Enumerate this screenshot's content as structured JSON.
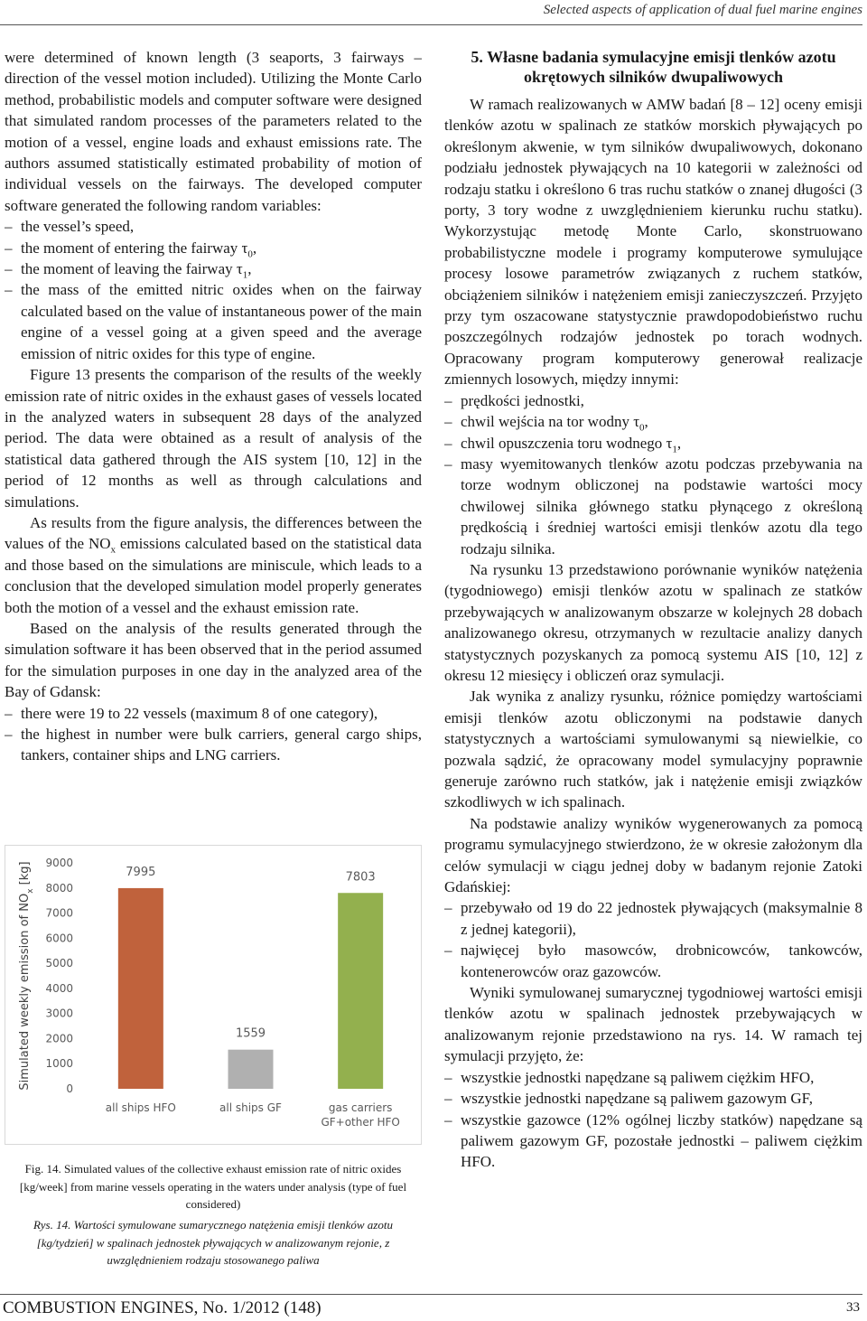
{
  "header": "Selected aspects of application of dual fuel marine engines",
  "left_column": [
    {
      "continuation": "were determined of known length (3 seaports, 3 fairways – direction of the vessel motion included). Utilizing the Monte Carlo method, probabilistic models and computer software were designed that simulated random processes of the parameters related to the motion of a vessel, engine loads and exhaust emissions rate. The authors assumed statistically estimated probability of motion of individual vessels on the fairways. The developed computer software generated the following random variables:"
    },
    {
      "list": [
        "the vessel’s speed,",
        {
          "text": "the moment of entering the fairway τ",
          "sub": "0",
          "tail": ","
        },
        {
          "text": "the moment of leaving the fairway τ",
          "sub": "1",
          "tail": ","
        },
        "the mass of the emitted nitric oxides when on the fairway calculated based on the value of instantaneous power of the main engine of a vessel going at a given speed and the average emission of nitric oxides for this type of engine."
      ]
    },
    {
      "paragraph": "Figure 13 presents the comparison of the results of the weekly emission rate of nitric oxides in the exhaust gases of vessels located in the analyzed waters in subsequent 28 days of the analyzed period. The data were obtained as a result of analysis of the statistical data gathered through the AIS system [10, 12] in the period of 12 months as well as through calculations and simulations."
    },
    {
      "paragraph": {
        "text": "As results from the figure analysis, the differences between the values of the NO",
        "sub": "x",
        "tail": " emissions calculated based on the statistical data and those based on the simulations are miniscule, which leads to a conclusion that the developed simulation model properly generates both the motion of a vessel and the exhaust emission rate."
      }
    },
    {
      "paragraph": "Based on the analysis of the results generated through the simulation software it has been observed that in the period assumed for the simulation purposes in one day in the analyzed area of the Bay of Gdansk:"
    },
    {
      "list": [
        "there were 19 to 22 vessels (maximum 8 of one category),",
        "the highest in number were bulk carriers, general cargo ships, tankers, container ships and LNG carriers."
      ]
    }
  ],
  "chart_data": {
    "type": "bar",
    "y_label": {
      "text": "Simulated weekly emission of NO",
      "sub": "x",
      "tail": " [kg]"
    },
    "categories": [
      "all ships HFO",
      "all ships GF",
      "gas carriers GF+other HFO"
    ],
    "values": [
      7995,
      1559,
      7803
    ],
    "colors": [
      "#c0623c",
      "#b0b0b0",
      "#93b04e"
    ],
    "ylim": [
      0,
      9000
    ],
    "yticks": [
      0,
      1000,
      2000,
      3000,
      4000,
      5000,
      6000,
      7000,
      8000,
      9000
    ],
    "grid": false
  },
  "caption_en": "Fig. 14. Simulated values of the collective exhaust emission rate of nitric oxides [kg/week] from marine vessels operating in the waters under analysis (type of fuel considered)",
  "caption_pl": "Rys. 14. Wartości symulowane sumarycznego natężenia emisji tlenków azotu [kg/tydzień] w spalinach jednostek pływających w analizowanym rejonie, z uwzględnieniem rodzaju stosowanego paliwa",
  "right_column": [
    {
      "heading": "5. Własne badania symulacyjne emisji tlenków azotu okrętowych silników dwupaliwowych"
    },
    {
      "paragraph": "W ramach realizowanych w AMW badań [8 – 12] oceny emisji tlenków azotu w spalinach ze statków morskich pływających po określonym akwenie, w tym silników dwupaliwowych, dokonano podziału jednostek pływających na 10 kategorii w zależności od rodzaju statku i określono 6 tras ruchu statków o znanej długości (3 porty, 3 tory wodne z uwzględnieniem kierunku ruchu statku). Wykorzystując metodę Monte Carlo, skonstruowano probabilistyczne modele i programy komputerowe symulujące procesy losowe parametrów związanych z ruchem statków, obciążeniem silników i natężeniem emisji zanieczyszczeń. Przyjęto przy tym oszacowane statystycznie prawdopodobieństwo ruchu poszczególnych rodzajów jednostek po torach wodnych. Opracowany program komputerowy generował realizacje zmiennych losowych, między innymi:"
    },
    {
      "list": [
        "prędkości jednostki,",
        {
          "text": "chwil wejścia na tor wodny τ",
          "sub": "0",
          "tail": ","
        },
        {
          "text": "chwil opuszczenia toru wodnego τ",
          "sub": "1",
          "tail": ","
        },
        "masy wyemitowanych tlenków azotu podczas przebywania na torze wodnym obliczonej na podstawie wartości mocy chwilowej silnika głównego statku płynącego z określoną prędkością i średniej wartości emisji tlenków azotu dla tego rodzaju silnika."
      ]
    },
    {
      "paragraph": "Na rysunku 13 przedstawiono porównanie wyników natężenia (tygodniowego) emisji tlenków azotu w spalinach ze statków przebywających w analizowanym obszarze w kolejnych 28 dobach analizowanego okresu, otrzymanych w rezultacie analizy danych statystycznych pozyskanych za pomocą systemu AIS [10, 12] z okresu 12 miesięcy i obliczeń oraz symulacji."
    },
    {
      "paragraph": "Jak wynika z analizy rysunku, różnice pomiędzy wartościami emisji tlenków azotu obliczonymi na podstawie danych statystycznych a wartościami symulowanymi są niewielkie, co pozwala sądzić, że opracowany model symulacyjny poprawnie generuje zarówno ruch statków, jak i natężenie emisji związków szkodliwych w ich spalinach."
    },
    {
      "paragraph": "Na podstawie analizy wyników wygenerowanych za pomocą programu symulacyjnego stwierdzono, że w okresie założonym dla celów symulacji w ciągu jednej doby w badanym rejonie Zatoki Gdańskiej:"
    },
    {
      "list": [
        "przebywało od 19 do 22 jednostek pływających (maksymalnie 8 z jednej kategorii),",
        "najwięcej było masowców, drobnicowców, tankowców, kontenerowców oraz gazowców."
      ]
    },
    {
      "paragraph": "Wyniki symulowanej sumarycznej tygodniowej wartości emisji tlenków azotu w spalinach jednostek przebywających w analizowanym rejonie przedstawiono na rys. 14. W ramach tej symulacji przyjęto, że:"
    },
    {
      "list": [
        "wszystkie jednostki napędzane są paliwem ciężkim HFO,",
        "wszystkie jednostki napędzane są paliwem gazowym GF,",
        "wszystkie gazowce (12% ogólnej liczby statków) napędzane są paliwem gazowym GF, pozostałe jednostki – paliwem ciężkim HFO."
      ]
    }
  ],
  "footer": {
    "journal": "COMBUSTION ENGINES, No. 1/2012 (148)",
    "page": "33"
  }
}
